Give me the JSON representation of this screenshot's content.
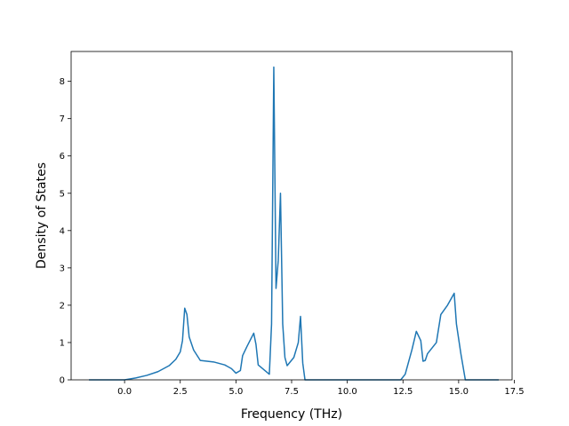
{
  "chart_data": {
    "type": "line",
    "title": "",
    "xlabel": "Frequency (THz)",
    "ylabel": "Density of States",
    "xlim": [
      -2.4,
      17.4
    ],
    "ylim": [
      0,
      8.8
    ],
    "xticks": [
      0.0,
      2.5,
      5.0,
      7.5,
      10.0,
      12.5,
      15.0,
      17.5
    ],
    "xtick_labels": [
      "0.0",
      "2.5",
      "5.0",
      "7.5",
      "10.0",
      "12.5",
      "15.0",
      "17.5"
    ],
    "yticks": [
      0,
      1,
      2,
      3,
      4,
      5,
      6,
      7,
      8
    ],
    "ytick_labels": [
      "0",
      "1",
      "2",
      "3",
      "4",
      "5",
      "6",
      "7",
      "8"
    ],
    "grid": false,
    "line_color": "#1f77b4",
    "series": [
      {
        "x": [
          -1.6,
          -0.2,
          0.0,
          0.5,
          1.0,
          1.5,
          2.0,
          2.3,
          2.5,
          2.6,
          2.7,
          2.8,
          2.9,
          3.1,
          3.4,
          4.0,
          4.5,
          4.8,
          5.0,
          5.2,
          5.3,
          5.5,
          5.8,
          5.9,
          6.0,
          6.5,
          6.6,
          6.7,
          6.8,
          6.9,
          7.0,
          7.1,
          7.2,
          7.3,
          7.6,
          7.8,
          7.9,
          8.0,
          8.1,
          9.0,
          10.0,
          11.0,
          12.0,
          12.4,
          12.6,
          12.9,
          13.1,
          13.3,
          13.4,
          13.5,
          13.6,
          14.0,
          14.2,
          14.5,
          14.8,
          14.9,
          15.1,
          15.3,
          16.0,
          16.8
        ],
        "y": [
          0.0,
          0.0,
          0.0,
          0.05,
          0.12,
          0.22,
          0.38,
          0.55,
          0.75,
          1.05,
          1.92,
          1.75,
          1.15,
          0.8,
          0.52,
          0.48,
          0.4,
          0.3,
          0.18,
          0.25,
          0.65,
          0.9,
          1.25,
          0.95,
          0.4,
          0.15,
          1.5,
          8.38,
          2.45,
          3.2,
          5.0,
          1.5,
          0.6,
          0.38,
          0.6,
          1.0,
          1.7,
          0.45,
          0.0,
          0.0,
          0.0,
          0.0,
          0.0,
          0.0,
          0.15,
          0.8,
          1.3,
          1.05,
          0.5,
          0.52,
          0.7,
          1.0,
          1.75,
          2.0,
          2.32,
          1.5,
          0.7,
          0.0,
          0.0,
          0.0
        ]
      }
    ]
  }
}
